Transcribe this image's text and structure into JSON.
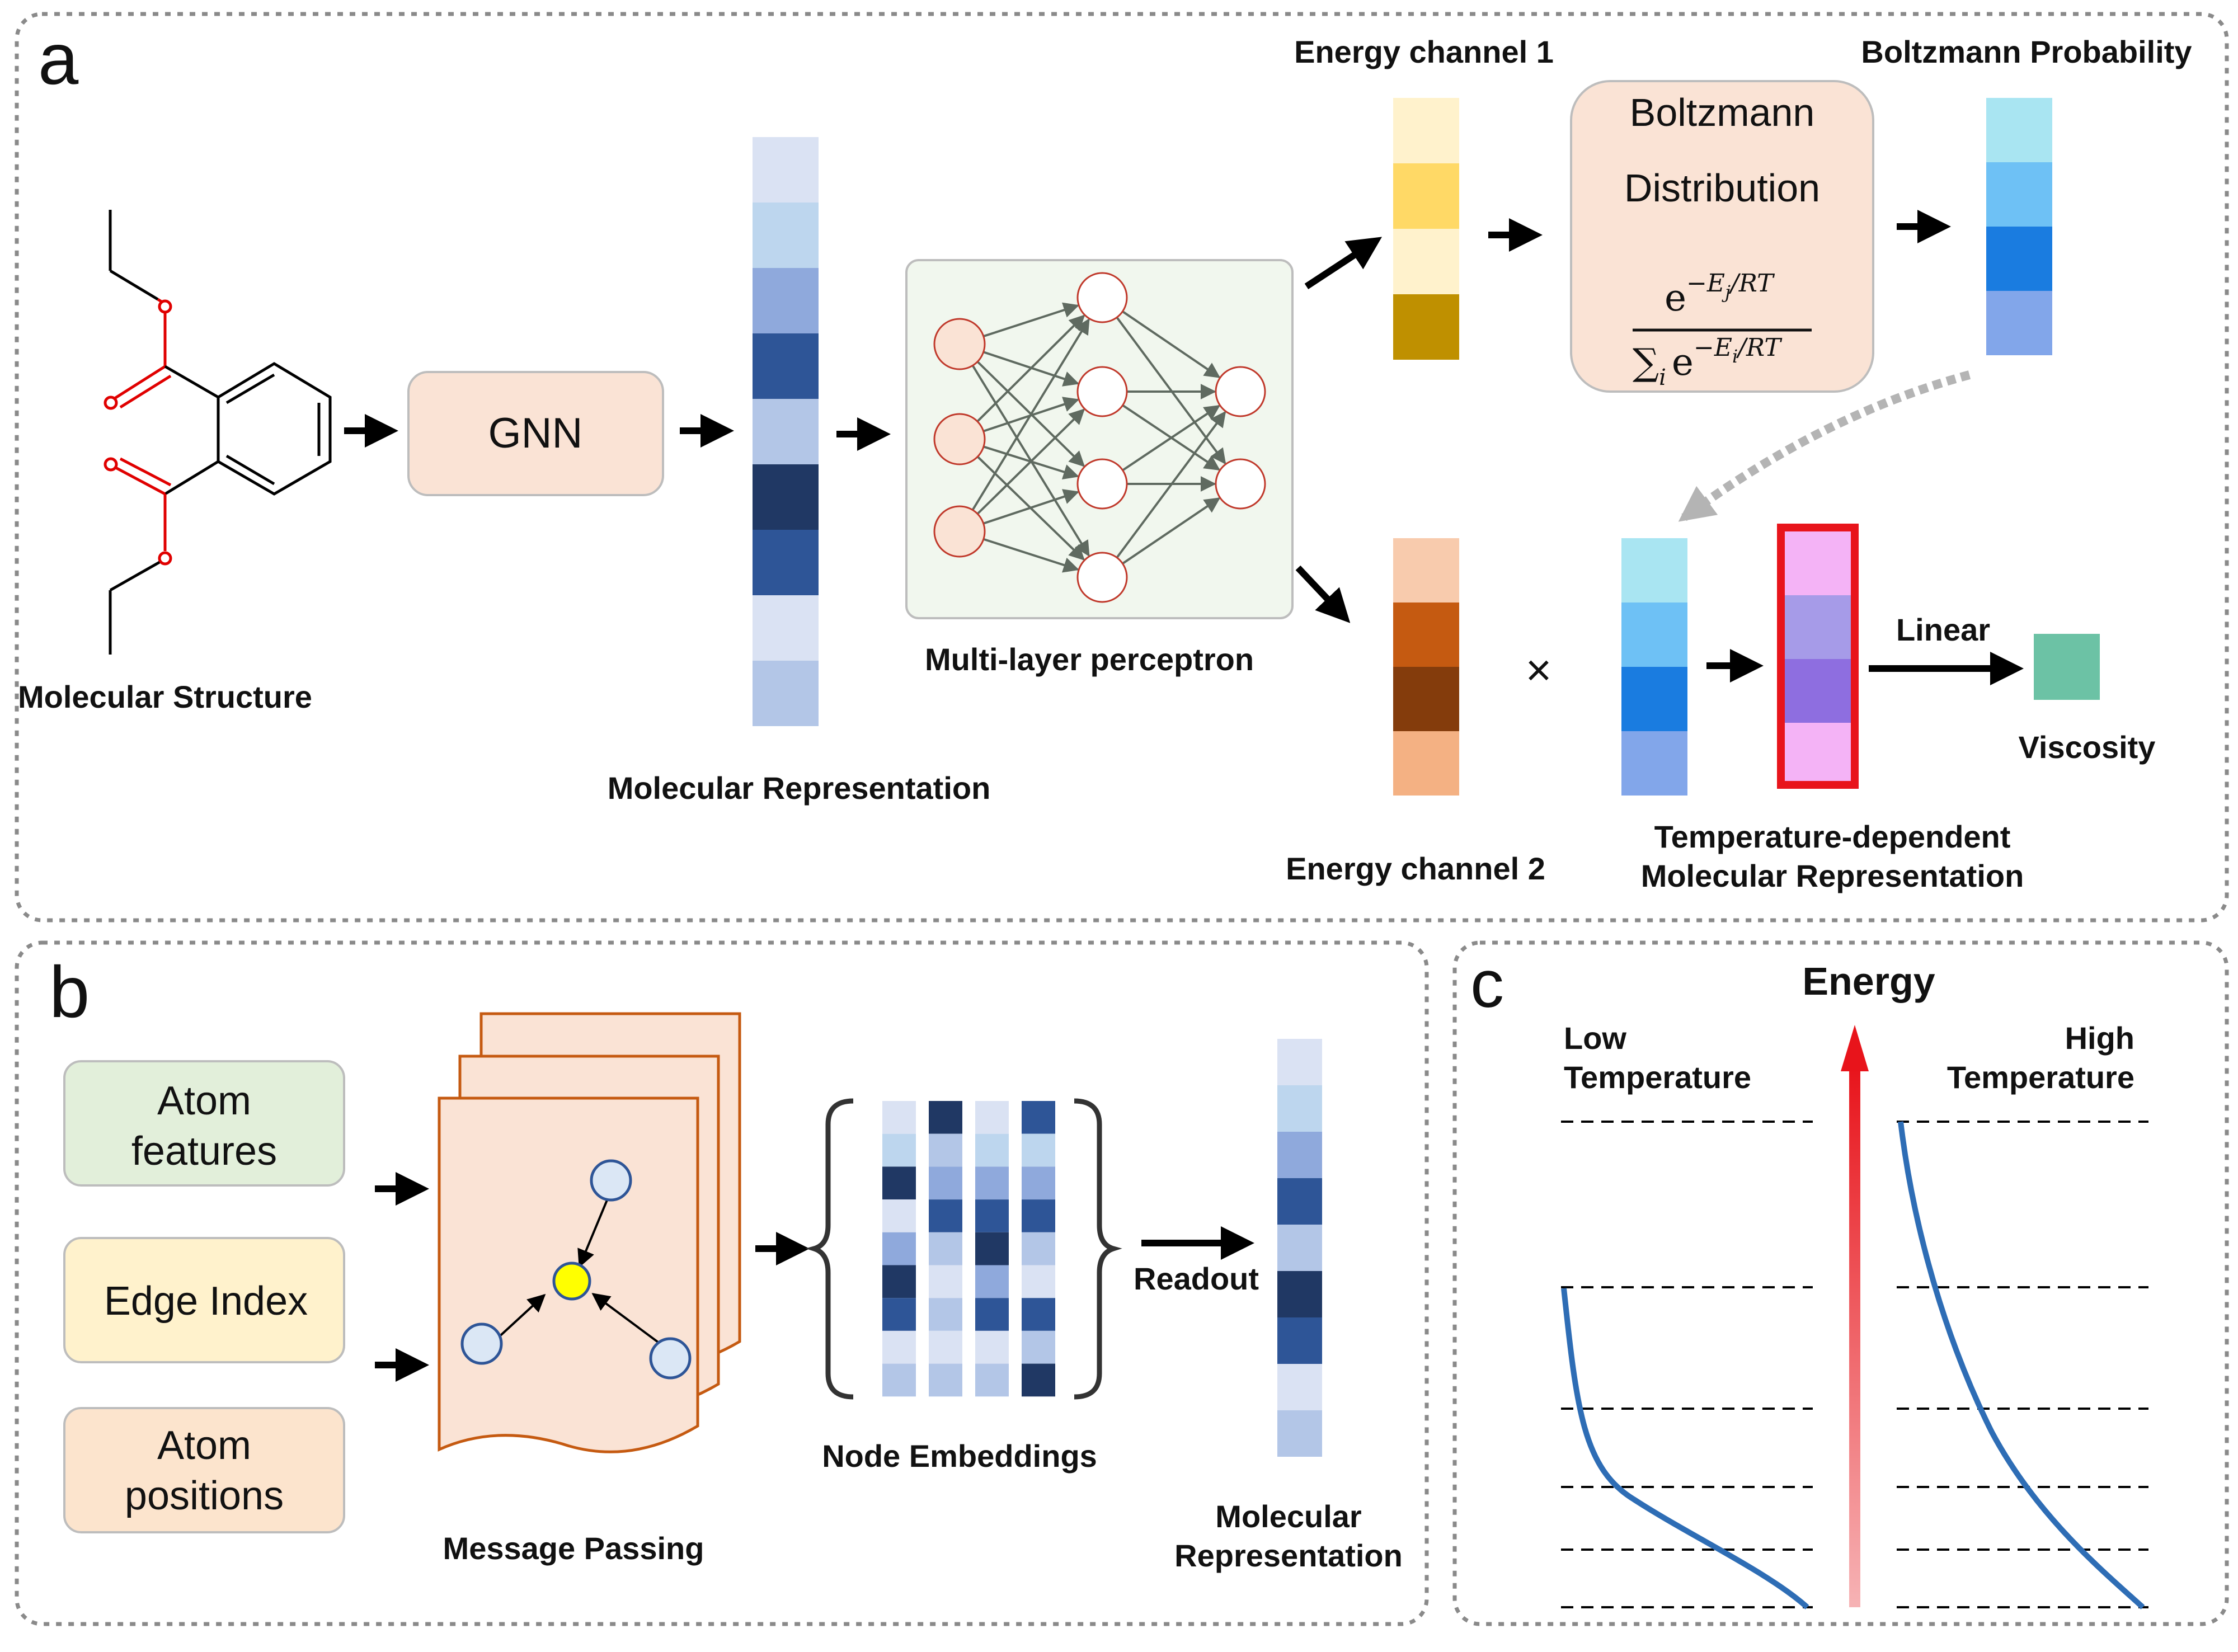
{
  "panel_a": {
    "letter": "a",
    "molecule_label": "Molecular Structure",
    "gnn_label": "GNN",
    "mol_rep_label": "Molecular Representation",
    "mlp_label": "Multi-layer perceptron",
    "energy_channel_1": "Energy channel 1",
    "energy_channel_2": "Energy channel 2",
    "boltzmann_prob_label": "Boltzmann Probability",
    "boltzmann_box_line1": "Boltzmann",
    "boltzmann_box_line2": "Distribution",
    "formula_num": "e",
    "formula_num_exp": "−E",
    "formula_num_sub": "j",
    "formula_num_rest": "/RT",
    "formula_den_sum": "∑",
    "formula_den_sub": "i",
    "formula_den_e": "e",
    "formula_den_exp": "−E",
    "formula_den_exp_sub": "i",
    "formula_den_rest": "/RT",
    "times_symbol": "×",
    "linear_label": "Linear",
    "viscosity_label": "Viscosity",
    "temp_rep_line1": "Temperature-dependent",
    "temp_rep_line2": "Molecular Representation",
    "colors": {
      "mol_rep": [
        "#dae2f3",
        "#bdd6ee",
        "#8fa9dc",
        "#2e5597",
        "#b3c6e7",
        "#203864",
        "#2e5597",
        "#dae2f3",
        "#b3c6e7"
      ],
      "energy1": [
        "#fff2cc",
        "#ffd966",
        "#fff2cc",
        "#bf9000"
      ],
      "energy2": [
        "#f8cbad",
        "#c55a11",
        "#843c0c",
        "#f4b183"
      ],
      "boltz_prob": [
        "#a9e5f2",
        "#6ec1f5",
        "#1a7ce0",
        "#82a6ea"
      ],
      "temp_rep": [
        "#f4b3f6",
        "#a69be8",
        "#8e6ee0",
        "#f4b3f6"
      ],
      "viscosity": "#6cc2a5",
      "red_frame": "#e8141b"
    }
  },
  "panel_b": {
    "letter": "b",
    "atom_features": [
      "Atom",
      "features"
    ],
    "edge_index": "Edge Index",
    "atom_positions": [
      "Atom",
      "positions"
    ],
    "message_passing_label": "Message Passing",
    "node_embeddings_label": "Node Embeddings",
    "readout_label": "Readout",
    "mol_rep_line1": "Molecular",
    "mol_rep_line2": "Representation",
    "embedding_columns": [
      [
        "#dae2f3",
        "#bdd6ee",
        "#203864",
        "#dae2f3",
        "#8fa9dc",
        "#203864",
        "#2e5597",
        "#dae2f3",
        "#b3c6e7"
      ],
      [
        "#203864",
        "#b3c6e7",
        "#8fa9dc",
        "#2e5597",
        "#b3c6e7",
        "#dae2f3",
        "#b3c6e7",
        "#dae2f3",
        "#b3c6e7"
      ],
      [
        "#dae2f3",
        "#bdd6ee",
        "#8fa9dc",
        "#2e5597",
        "#203864",
        "#8fa9dc",
        "#2e5597",
        "#dae2f3",
        "#b3c6e7"
      ],
      [
        "#2e5597",
        "#bdd6ee",
        "#8fa9dc",
        "#2e5597",
        "#b3c6e7",
        "#dae2f3",
        "#2e5597",
        "#b3c6e7",
        "#203864"
      ]
    ],
    "readout_colors": [
      "#dae2f3",
      "#bdd6ee",
      "#8fa9dc",
      "#2e5597",
      "#b3c6e7",
      "#203864",
      "#2e5597",
      "#dae2f3",
      "#b3c6e7"
    ]
  },
  "panel_c": {
    "letter": "c",
    "energy_label": "Energy",
    "low_temp": [
      "Low",
      "Temperature"
    ],
    "high_temp": [
      "High",
      "Temperature"
    ]
  }
}
